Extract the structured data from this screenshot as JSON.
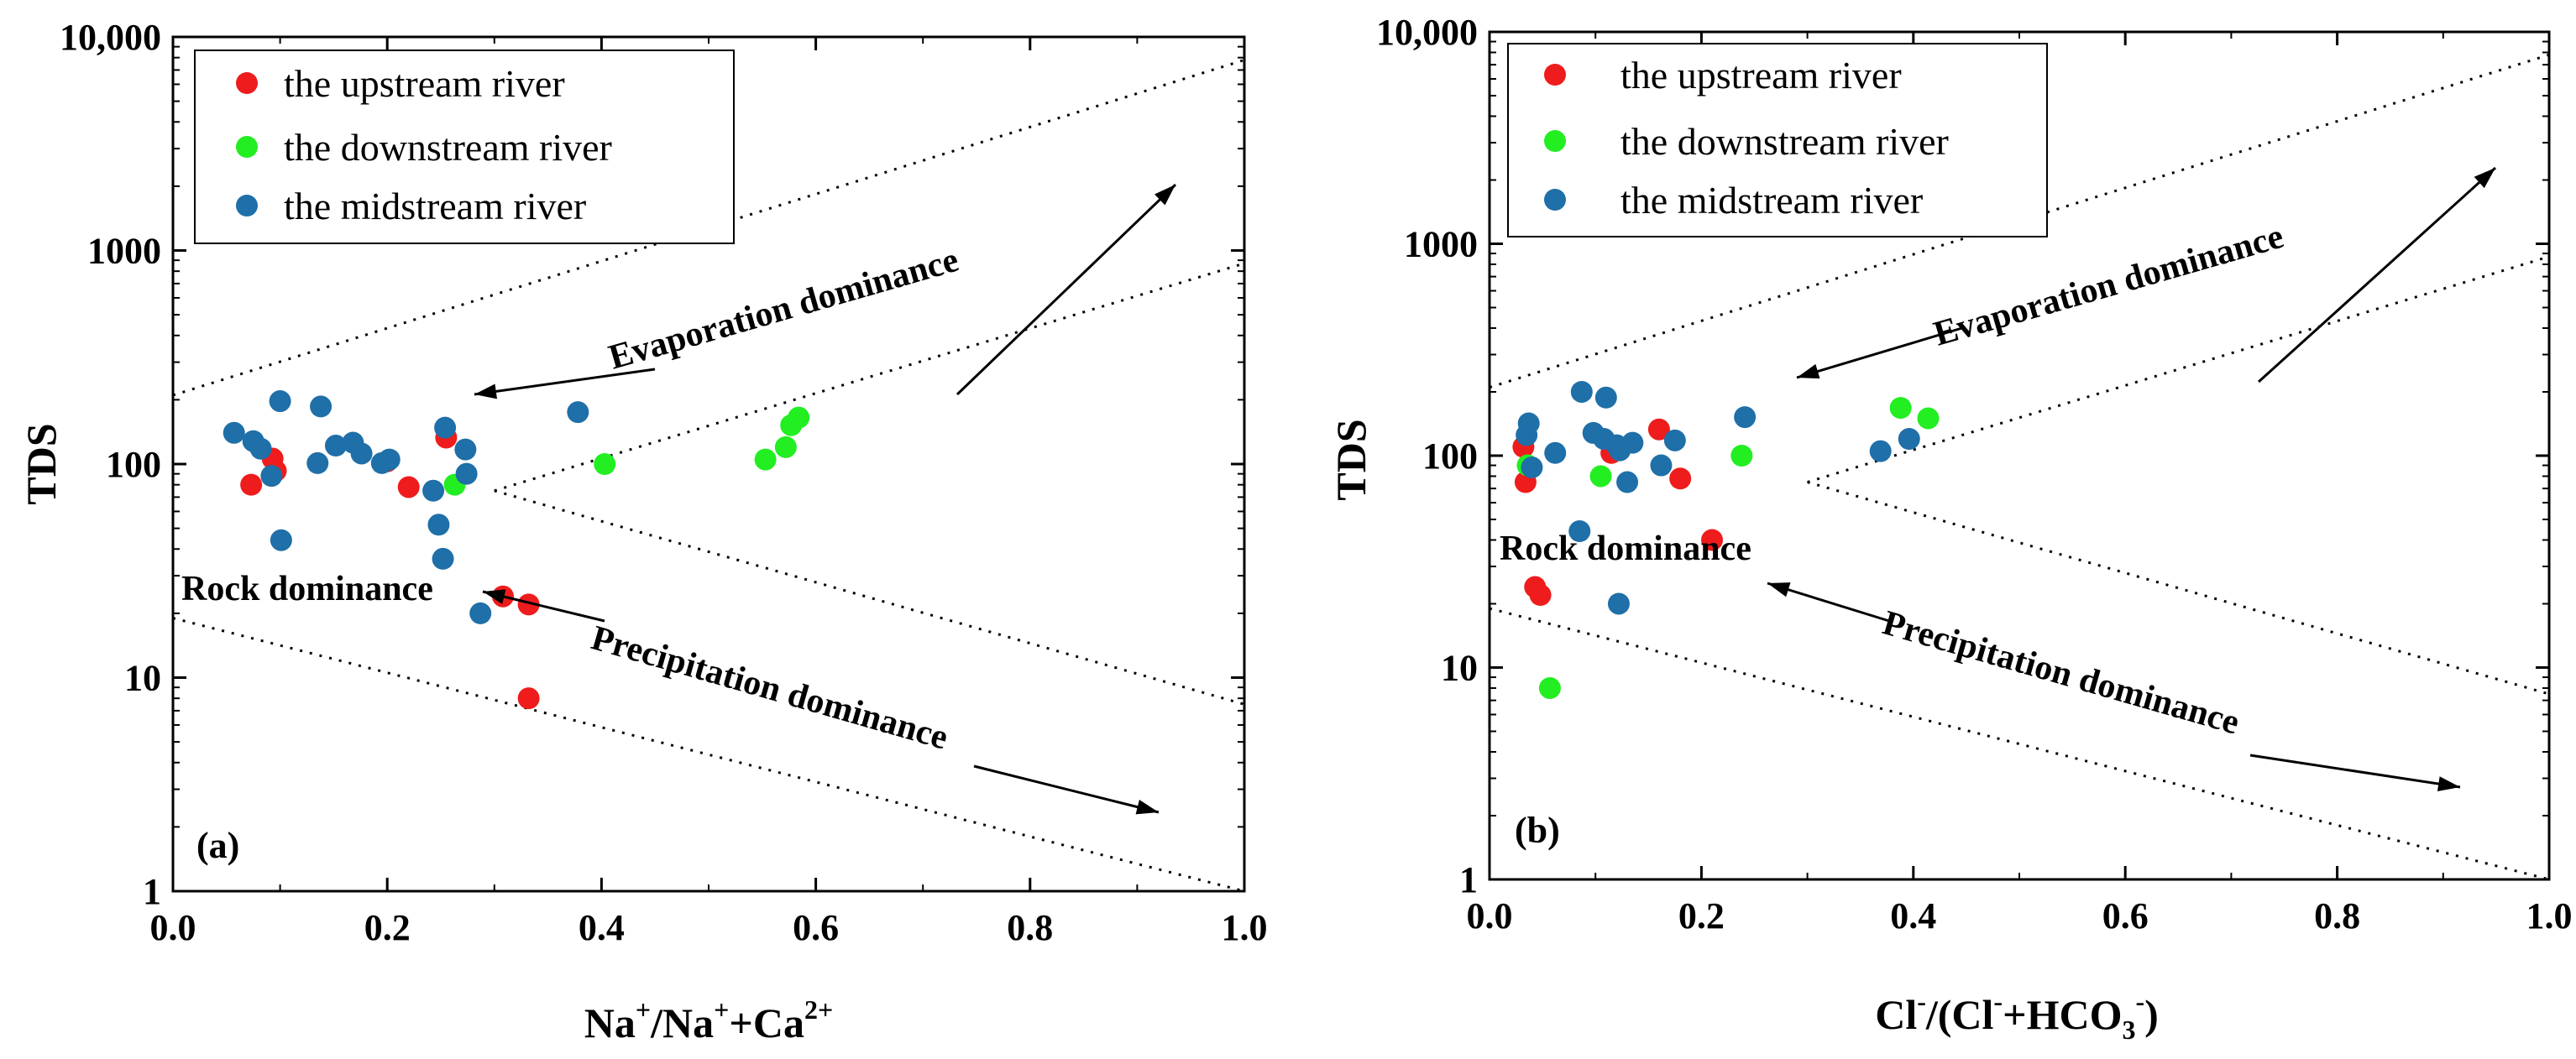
{
  "colors": {
    "upstream": "#ee1c1c",
    "downstream": "#22ee22",
    "midstream": "#1f6fa8",
    "axis": "#000000"
  },
  "chart_data": [
    {
      "type": "scatter",
      "panel_label": "(a)",
      "xlabel": {
        "base": "Na",
        "sup1": "+",
        "mid": "/Na",
        "sup2": "+",
        "end": "+Ca",
        "sup3": "2+"
      },
      "ylabel": "TDS",
      "xlim": [
        0,
        1
      ],
      "ylim": [
        1,
        10000
      ],
      "yscale": "log",
      "x_ticks": [
        "0.0",
        "0.2",
        "0.4",
        "0.6",
        "0.8",
        "1.0"
      ],
      "y_ticks": [
        "1",
        "10",
        "100",
        "1000",
        "10,000"
      ],
      "legend": [
        "the upstream river",
        "the downstream river",
        "the midstream river"
      ],
      "annotations": {
        "evaporation": "Evaporation dominance",
        "rock": "Rock dominance",
        "precipitation": "Precipitation dominance"
      },
      "series": [
        {
          "name": "the upstream river",
          "key": "upstream",
          "x": [
            0.073,
            0.093,
            0.096,
            0.2,
            0.22,
            0.255,
            0.308,
            0.332,
            0.332
          ],
          "y": [
            80,
            106,
            93,
            103,
            78,
            133,
            24,
            22,
            8
          ]
        },
        {
          "name": "the downstream river",
          "key": "downstream",
          "x": [
            0.263,
            0.403,
            0.553,
            0.572,
            0.577,
            0.584
          ],
          "y": [
            80,
            100,
            105,
            120,
            152,
            165
          ]
        },
        {
          "name": "the midstream river",
          "key": "midstream",
          "x": [
            0.057,
            0.075,
            0.082,
            0.092,
            0.1,
            0.101,
            0.135,
            0.138,
            0.152,
            0.168,
            0.176,
            0.195,
            0.202,
            0.243,
            0.248,
            0.252,
            0.254,
            0.273,
            0.274,
            0.287,
            0.378
          ],
          "y": [
            140,
            128,
            118,
            88,
            197,
            44,
            101,
            186,
            122,
            126,
            112,
            101,
            105,
            75,
            52,
            36,
            148,
            117,
            90,
            20,
            175
          ]
        }
      ]
    },
    {
      "type": "scatter",
      "panel_label": "(b)",
      "xlabel": {
        "p1": "Cl",
        "s1": "-",
        "p2": "/(Cl",
        "s2": "-",
        "p3": "+HCO",
        "sub": "3",
        "s3": "-",
        "p4": ")"
      },
      "ylabel": "TDS",
      "xlim": [
        0,
        1
      ],
      "ylim": [
        1,
        10000
      ],
      "yscale": "log",
      "x_ticks": [
        "0.0",
        "0.2",
        "0.4",
        "0.6",
        "0.8",
        "1.0"
      ],
      "y_ticks": [
        "1",
        "10",
        "100",
        "1000",
        "10,000"
      ],
      "legend": [
        "the upstream river",
        "the downstream river",
        "the midstream river"
      ],
      "annotations": {
        "evaporation": "Evaporation dominance",
        "rock": "Rock dominance",
        "precipitation": "Precipitation dominance"
      },
      "series": [
        {
          "name": "the upstream river",
          "key": "upstream",
          "x": [
            0.032,
            0.034,
            0.043,
            0.048,
            0.115,
            0.16,
            0.18,
            0.21
          ],
          "y": [
            110,
            75,
            24,
            22,
            103,
            133,
            78,
            40
          ]
        },
        {
          "name": "the downstream river",
          "key": "downstream",
          "x": [
            0.036,
            0.057,
            0.105,
            0.238,
            0.388,
            0.414
          ],
          "y": [
            90,
            8,
            80,
            100,
            168,
            150
          ]
        },
        {
          "name": "the midstream river",
          "key": "midstream",
          "x": [
            0.035,
            0.037,
            0.04,
            0.062,
            0.085,
            0.087,
            0.098,
            0.108,
            0.11,
            0.12,
            0.122,
            0.123,
            0.13,
            0.135,
            0.162,
            0.175,
            0.241,
            0.369,
            0.396
          ],
          "y": [
            125,
            142,
            88,
            103,
            44,
            200,
            128,
            120,
            188,
            112,
            20,
            106,
            75,
            115,
            90,
            118,
            152,
            105,
            120
          ]
        }
      ]
    }
  ]
}
